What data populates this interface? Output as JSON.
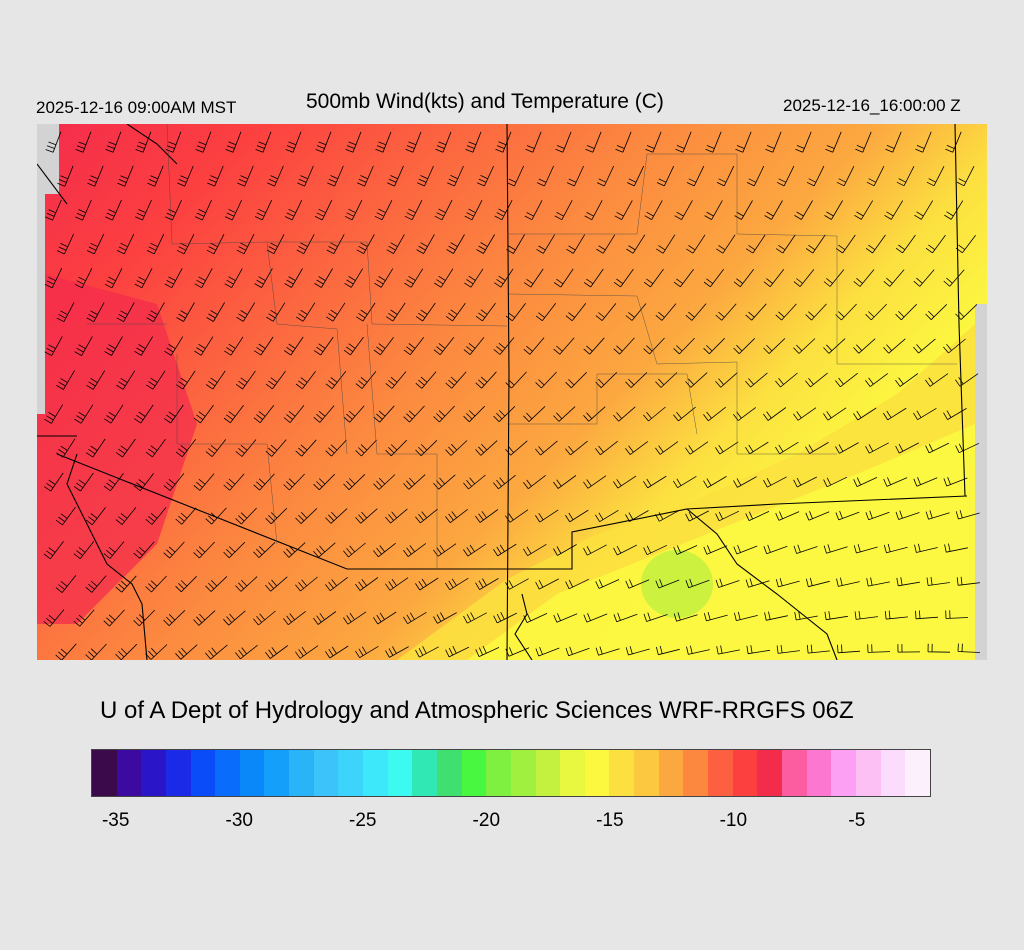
{
  "header": {
    "valid_local": "2025-12-16 09:00AM MST",
    "title": "500mb Wind(kts) and Temperature (C)",
    "valid_utc": "2025-12-16_16:00:00 Z"
  },
  "credit": "U of A Dept of Hydrology and Atmospheric Sciences WRF-RRGFS 06Z",
  "colorbar": {
    "colors": [
      "#3a0a4a",
      "#3c0aa0",
      "#2a16c8",
      "#1a2ae6",
      "#0a4cf8",
      "#0a6cfa",
      "#0a88fa",
      "#14a0fa",
      "#2ab4f8",
      "#3cc4fa",
      "#3cd4fa",
      "#3ce8fa",
      "#3cfaf0",
      "#30e8b4",
      "#40e070",
      "#48f840",
      "#80f040",
      "#a0f040",
      "#c4f040",
      "#e8f840",
      "#fcf840",
      "#fce040",
      "#fcc840",
      "#fca840",
      "#fc8840",
      "#fc6040",
      "#fc4040",
      "#f42c4c",
      "#fc5ca0",
      "#fc78d0",
      "#fca0f4",
      "#fcc0f4",
      "#fcdcfc",
      "#fcf0fc"
    ],
    "tick_labels": [
      "-35",
      "-30",
      "-25",
      "-20",
      "-15",
      "-10",
      "-5"
    ]
  },
  "map": {
    "field": "temperature_500mb_C",
    "temperature_colors": {
      "warm_yellow": "#fcf840",
      "yellow_orange": "#fce040",
      "orange_light": "#fcc840",
      "orange": "#fca840",
      "orange_dark": "#fc8840",
      "red_orange": "#fc6040",
      "red": "#fc4040",
      "red_pink": "#f42c4c",
      "lime": "#c4f040"
    },
    "no_data_color": "#d3d3d3",
    "boundary_color": "#000000",
    "barb_color": "#000000"
  }
}
